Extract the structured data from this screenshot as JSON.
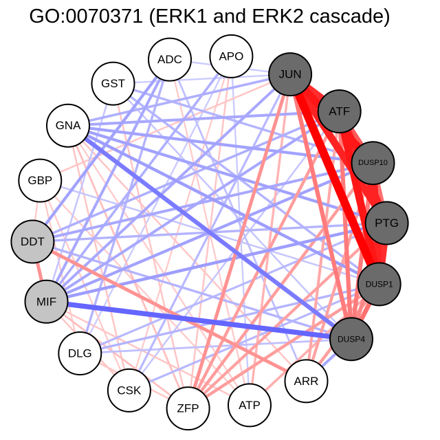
{
  "title": "GO:0070371 (ERK1 and ERK2 cascade)",
  "colors": {
    "positive_edge": "#ff0000",
    "negative_edge": "#0000ff",
    "node_outline": "#000000",
    "node_white": "#ffffff",
    "node_gray": "#c4c4c4",
    "node_dark": "#6b6b6b"
  },
  "nodes": [
    {
      "id": "JUN",
      "fill": "dark"
    },
    {
      "id": "ATF",
      "fill": "dark"
    },
    {
      "id": "DUSP10",
      "fill": "dark"
    },
    {
      "id": "PTG",
      "fill": "dark"
    },
    {
      "id": "DUSP1",
      "fill": "dark"
    },
    {
      "id": "DUSP4",
      "fill": "dark"
    },
    {
      "id": "ARR",
      "fill": "white"
    },
    {
      "id": "ATP",
      "fill": "white"
    },
    {
      "id": "ZFP",
      "fill": "white"
    },
    {
      "id": "CSK",
      "fill": "white"
    },
    {
      "id": "DLG",
      "fill": "white"
    },
    {
      "id": "MIF",
      "fill": "gray"
    },
    {
      "id": "DDT",
      "fill": "gray"
    },
    {
      "id": "GBP",
      "fill": "white"
    },
    {
      "id": "GNA",
      "fill": "white"
    },
    {
      "id": "GST",
      "fill": "white"
    },
    {
      "id": "ADC",
      "fill": "white"
    },
    {
      "id": "APO",
      "fill": "white"
    }
  ],
  "edges": [
    {
      "from": "JUN",
      "to": "DUSP1",
      "weight": 1.0
    },
    {
      "from": "JUN",
      "to": "DUSP10",
      "weight": 0.9
    },
    {
      "from": "JUN",
      "to": "PTG",
      "weight": 0.85
    },
    {
      "from": "JUN",
      "to": "ATF",
      "weight": 0.8
    },
    {
      "from": "ATF",
      "to": "DUSP1",
      "weight": 0.9
    },
    {
      "from": "ATF",
      "to": "PTG",
      "weight": 0.85
    },
    {
      "from": "ATF",
      "to": "DUSP10",
      "weight": 0.6
    },
    {
      "from": "DUSP10",
      "to": "DUSP1",
      "weight": 0.85
    },
    {
      "from": "PTG",
      "to": "DUSP1",
      "weight": 0.8
    },
    {
      "from": "DUSP10",
      "to": "PTG",
      "weight": 0.5
    },
    {
      "from": "DUSP4",
      "to": "JUN",
      "weight": 0.45
    },
    {
      "from": "DUSP4",
      "to": "ATF",
      "weight": 0.45
    },
    {
      "from": "DUSP4",
      "to": "DUSP10",
      "weight": 0.45
    },
    {
      "from": "DUSP4",
      "to": "PTG",
      "weight": 0.4
    },
    {
      "from": "DUSP4",
      "to": "DUSP1",
      "weight": 0.5
    },
    {
      "from": "ZFP",
      "to": "JUN",
      "weight": 0.35
    },
    {
      "from": "ZFP",
      "to": "ATF",
      "weight": 0.3
    },
    {
      "from": "ZFP",
      "to": "DUSP10",
      "weight": 0.3
    },
    {
      "from": "ZFP",
      "to": "PTG",
      "weight": 0.28
    },
    {
      "from": "ZFP",
      "to": "DUSP1",
      "weight": 0.3
    },
    {
      "from": "ARR",
      "to": "DUSP1",
      "weight": 0.3
    },
    {
      "from": "ARR",
      "to": "DUSP10",
      "weight": 0.28
    },
    {
      "from": "ARR",
      "to": "ATF",
      "weight": 0.25
    },
    {
      "from": "ARR",
      "to": "DDT",
      "weight": 0.35
    },
    {
      "from": "ATP",
      "to": "DUSP1",
      "weight": 0.22
    },
    {
      "from": "ATP",
      "to": "JUN",
      "weight": 0.2
    },
    {
      "from": "MIF",
      "to": "DDT",
      "weight": 0.35
    },
    {
      "from": "MIF",
      "to": "DUSP4",
      "weight": -0.55
    },
    {
      "from": "GNA",
      "to": "DUSP4",
      "weight": -0.45
    },
    {
      "from": "GNA",
      "to": "DUSP1",
      "weight": -0.3
    },
    {
      "from": "GNA",
      "to": "PTG",
      "weight": -0.28
    },
    {
      "from": "GNA",
      "to": "DUSP10",
      "weight": -0.28
    },
    {
      "from": "GNA",
      "to": "ATF",
      "weight": -0.25
    },
    {
      "from": "GNA",
      "to": "JUN",
      "weight": -0.22
    },
    {
      "from": "ADC",
      "to": "DDT",
      "weight": -0.28
    },
    {
      "from": "ADC",
      "to": "MIF",
      "weight": -0.25
    },
    {
      "from": "ADC",
      "to": "DLG",
      "weight": -0.2
    },
    {
      "from": "APO",
      "to": "MIF",
      "weight": -0.22
    },
    {
      "from": "GST",
      "to": "DUSP10",
      "weight": -0.2
    },
    {
      "from": "GST",
      "to": "DUSP1",
      "weight": -0.2
    },
    {
      "from": "MIF",
      "to": "PTG",
      "weight": -0.3
    },
    {
      "from": "MIF",
      "to": "DUSP10",
      "weight": -0.28
    },
    {
      "from": "MIF",
      "to": "JUN",
      "weight": -0.25
    },
    {
      "from": "MIF",
      "to": "ATF",
      "weight": -0.25
    },
    {
      "from": "DDT",
      "to": "DUSP10",
      "weight": -0.25
    },
    {
      "from": "DDT",
      "to": "ATF",
      "weight": -0.22
    },
    {
      "from": "DDT",
      "to": "PTG",
      "weight": -0.2
    },
    {
      "from": "DLG",
      "to": "DUSP1",
      "weight": -0.2
    },
    {
      "from": "DLG",
      "to": "PTG",
      "weight": -0.18
    },
    {
      "from": "CSK",
      "to": "JUN",
      "weight": -0.18
    },
    {
      "from": "CSK",
      "to": "DUSP1",
      "weight": -0.18
    },
    {
      "from": "DUSP4",
      "to": "ARR",
      "weight": -0.25
    },
    {
      "from": "DUSP4",
      "to": "GST",
      "weight": -0.12
    },
    {
      "from": "GNA",
      "to": "ZFP",
      "weight": 0.15
    },
    {
      "from": "GNA",
      "to": "CSK",
      "weight": 0.12
    },
    {
      "from": "GNA",
      "to": "ARR",
      "weight": 0.12
    },
    {
      "from": "GBP",
      "to": "JUN",
      "weight": 0.12
    },
    {
      "from": "GBP",
      "to": "ATP",
      "weight": 0.1
    },
    {
      "from": "GBP",
      "to": "DUSP1",
      "weight": -0.12
    },
    {
      "from": "GST",
      "to": "ZFP",
      "weight": 0.12
    },
    {
      "from": "GST",
      "to": "MIF",
      "weight": -0.12
    },
    {
      "from": "ADC",
      "to": "ARR",
      "weight": -0.15
    },
    {
      "from": "APO",
      "to": "CSK",
      "weight": 0.1
    },
    {
      "from": "APO",
      "to": "DLG",
      "weight": -0.1
    },
    {
      "from": "APO",
      "to": "ZFP",
      "weight": 0.12
    },
    {
      "from": "DLG",
      "to": "ZFP",
      "weight": 0.12
    },
    {
      "from": "CSK",
      "to": "ATF",
      "weight": -0.12
    },
    {
      "from": "DDT",
      "to": "GBP",
      "weight": 0.1
    },
    {
      "from": "MIF",
      "to": "ZFP",
      "weight": 0.15
    },
    {
      "from": "DLG",
      "to": "DUSP4",
      "weight": -0.15
    },
    {
      "from": "ATP",
      "to": "MIF",
      "weight": 0.12
    },
    {
      "from": "ATP",
      "to": "GNA",
      "weight": 0.1
    },
    {
      "from": "DUSP4",
      "to": "DDT",
      "weight": -0.2
    },
    {
      "from": "JUN",
      "to": "ADC",
      "weight": -0.1
    },
    {
      "from": "JUN",
      "to": "GST",
      "weight": -0.1
    },
    {
      "from": "ATF",
      "to": "GNA",
      "weight": -0.12
    },
    {
      "from": "APO",
      "to": "ATP",
      "weight": -0.1
    },
    {
      "from": "ADC",
      "to": "ATP",
      "weight": 0.1
    },
    {
      "from": "GBP",
      "to": "CSK",
      "weight": 0.1
    },
    {
      "from": "GBP",
      "to": "DLG",
      "weight": 0.1
    },
    {
      "from": "MIF",
      "to": "CSK",
      "weight": 0.12
    }
  ]
}
